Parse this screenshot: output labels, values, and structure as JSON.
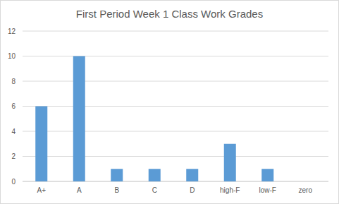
{
  "chart_data": {
    "type": "bar",
    "title": "First Period Week 1 Class Work Grades",
    "categories": [
      "A+",
      "A",
      "B",
      "C",
      "D",
      "high-F",
      "low-F",
      "zero"
    ],
    "values": [
      6,
      10,
      1,
      1,
      1,
      3,
      1,
      0
    ],
    "color": "#5b9bd5",
    "ylim": [
      0,
      12
    ],
    "yticks": [
      0,
      2,
      4,
      6,
      8,
      10,
      12
    ],
    "grid": true
  }
}
